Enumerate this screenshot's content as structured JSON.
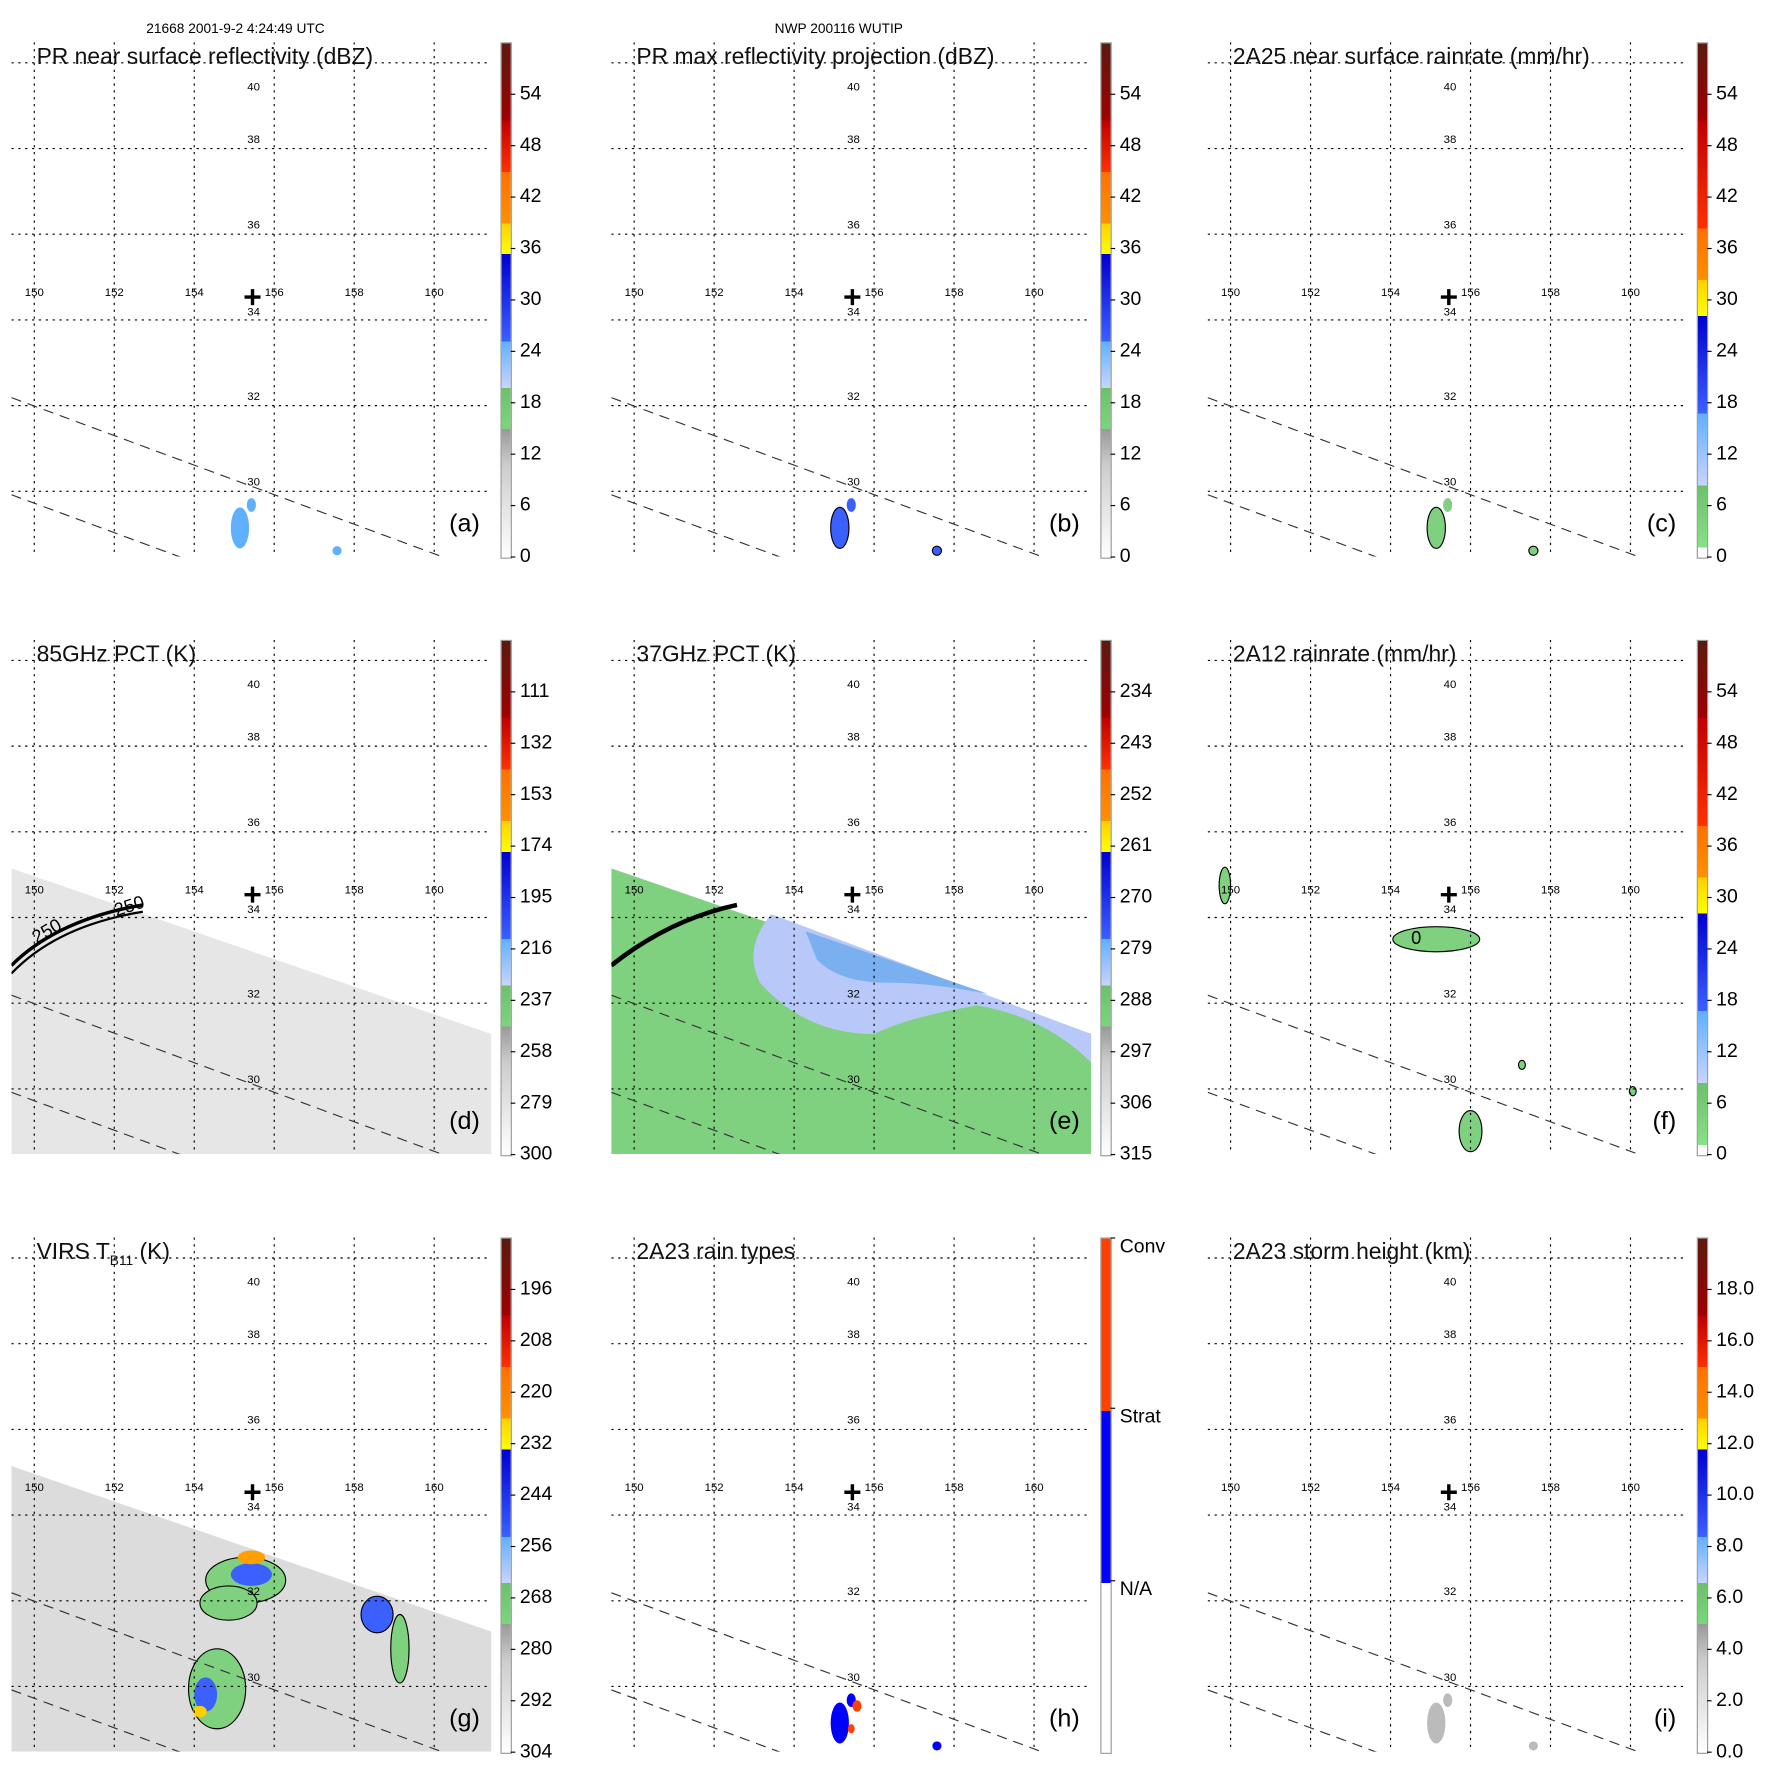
{
  "header": {
    "left": "21668 2001-9-2 4:24:49 UTC",
    "center": "NWP 200116 WUTIP"
  },
  "map": {
    "lon_labels": [
      "150",
      "152",
      "154",
      "156",
      "158",
      "160"
    ],
    "lat_labels": [
      "40",
      "38",
      "36",
      "34",
      "32",
      "30"
    ]
  },
  "panels": [
    {
      "title": "PR near surface reflectivity (dBZ)",
      "label": "(a)",
      "colorbar": "std",
      "cb_labels": [
        "0",
        "6",
        "12",
        "18",
        "24",
        "30",
        "36",
        "42",
        "48",
        "54"
      ]
    },
    {
      "title": "PR max reflectivity projection (dBZ)",
      "label": "(b)",
      "colorbar": "std",
      "cb_labels": [
        "0",
        "6",
        "12",
        "18",
        "24",
        "30",
        "36",
        "42",
        "48",
        "54"
      ]
    },
    {
      "title": "2A25 near surface rainrate (mm/hr)",
      "label": "(c)",
      "colorbar": "rain",
      "cb_labels": [
        "0",
        "6",
        "12",
        "18",
        "24",
        "30",
        "36",
        "42",
        "48",
        "54"
      ]
    },
    {
      "title": "85GHz PCT (K)",
      "label": "(d)",
      "colorbar": "std",
      "cb_labels": [
        "300",
        "279",
        "258",
        "237",
        "216",
        "195",
        "174",
        "153",
        "132",
        "111"
      ],
      "contour_labels": [
        "250",
        "250"
      ]
    },
    {
      "title": "37GHz PCT (K)",
      "label": "(e)",
      "colorbar": "std",
      "cb_labels": [
        "315",
        "306",
        "297",
        "288",
        "279",
        "270",
        "261",
        "252",
        "243",
        "234"
      ]
    },
    {
      "title": "2A12 rainrate (mm/hr)",
      "label": "(f)",
      "colorbar": "rain",
      "cb_labels": [
        "0",
        "6",
        "12",
        "18",
        "24",
        "30",
        "36",
        "42",
        "48",
        "54"
      ],
      "contour_labels": [
        "0"
      ]
    },
    {
      "title": "VIRS T",
      "title_sub": "B11",
      "title_suffix": " (K)",
      "label": "(g)",
      "colorbar": "std",
      "cb_labels": [
        "304",
        "292",
        "280",
        "268",
        "256",
        "244",
        "232",
        "220",
        "208",
        "196"
      ]
    },
    {
      "title": "2A23 rain types",
      "label": "(h)",
      "colorbar": "type",
      "cb_labels": [
        "N/A",
        "Strat",
        "Conv"
      ]
    },
    {
      "title": "2A23 storm height (km)",
      "label": "(i)",
      "colorbar": "std",
      "cb_labels": [
        "0.0",
        "2.0",
        "4.0",
        "6.0",
        "8.0",
        "10.0",
        "12.0",
        "14.0",
        "16.0",
        "18.0"
      ]
    }
  ]
}
